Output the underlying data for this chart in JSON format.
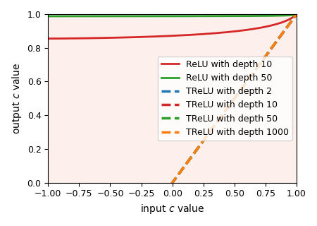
{
  "title": "",
  "xlabel": "input $c$ value",
  "ylabel": "output $c$ value",
  "xlim": [
    -1.0,
    1.0
  ],
  "ylim": [
    0.0,
    1.0
  ],
  "background_color": "#fdf0ec",
  "lines": [
    {
      "label": "ReLU with depth 10",
      "color": "#d62728",
      "linestyle": "-",
      "linewidth": 2.0,
      "depth": 10,
      "type": "relu"
    },
    {
      "label": "ReLU with depth 50",
      "color": "#2ca02c",
      "linestyle": "-",
      "linewidth": 2.0,
      "depth": 50,
      "type": "relu"
    },
    {
      "label": "TReLU with depth 2",
      "color": "#1f77b4",
      "linestyle": "--",
      "linewidth": 2.5,
      "depth": 2,
      "type": "trelu"
    },
    {
      "label": "TReLU with depth 10",
      "color": "#d62728",
      "linestyle": "--",
      "linewidth": 2.5,
      "depth": 10,
      "type": "trelu"
    },
    {
      "label": "TReLU with depth 50",
      "color": "#2ca02c",
      "linestyle": "--",
      "linewidth": 2.5,
      "depth": 50,
      "type": "trelu"
    },
    {
      "label": "TReLU with depth 1000",
      "color": "#ff7f0e",
      "linestyle": "--",
      "linewidth": 2.5,
      "depth": 1000,
      "type": "trelu"
    }
  ],
  "legend_loc": "center right",
  "legend_fontsize": 9
}
